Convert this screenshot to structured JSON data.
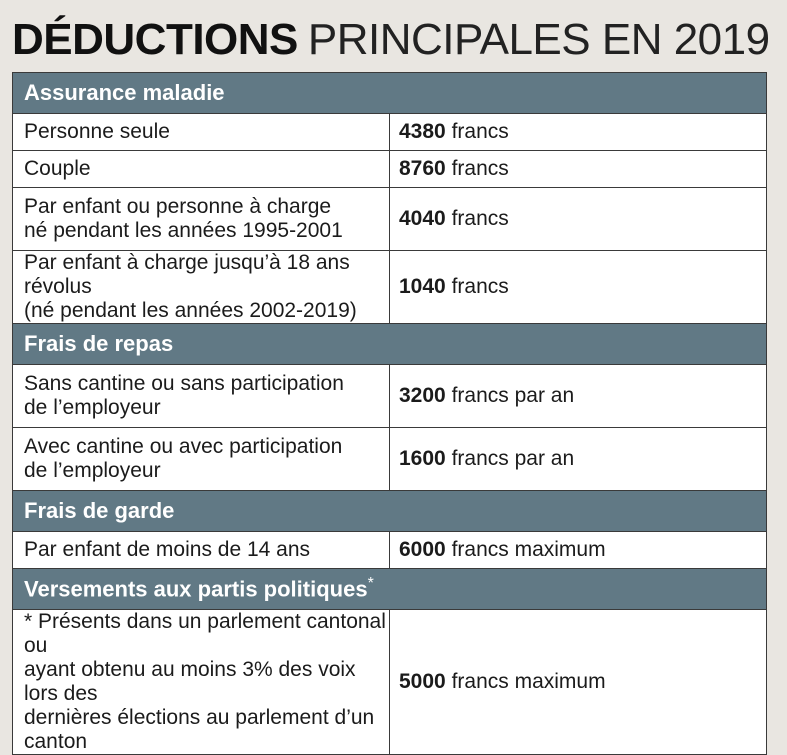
{
  "title": {
    "bold": "DÉDUCTIONS",
    "light": "PRINCIPALES EN 2019"
  },
  "sections": {
    "s0": {
      "heading": "Assurance maladie",
      "rows": [
        {
          "label1": "Personne seule",
          "num": "4380",
          "unit": "francs"
        },
        {
          "label1": "Couple",
          "num": "8760",
          "unit": "francs"
        },
        {
          "label1": "Par enfant ou personne à charge",
          "label2": "né pendant les années 1995-2001",
          "num": "4040",
          "unit": "francs"
        },
        {
          "label1": "Par enfant à charge jusqu’à 18 ans révolus",
          "label2": "(né pendant les années 2002-2019)",
          "num": "1040",
          "unit": "francs"
        }
      ]
    },
    "s1": {
      "heading": "Frais de repas",
      "rows": [
        {
          "label1": "Sans cantine ou sans participation",
          "label2": "de l’employeur",
          "num": "3200",
          "unit": "francs par an"
        },
        {
          "label1": "Avec cantine ou avec participation",
          "label2": "de l’employeur",
          "num": "1600",
          "unit": "francs par an"
        }
      ]
    },
    "s2": {
      "heading": "Frais de garde",
      "rows": [
        {
          "label1": "Par enfant de moins de 14 ans",
          "num": "6000",
          "unit": "francs maximum"
        }
      ]
    },
    "s3": {
      "heading": "Versements aux partis politiques",
      "heading_mark": "*",
      "rows": [
        {
          "label1": "* Présents dans un parlement cantonal ou",
          "label2": "ayant obtenu au moins 3% des voix lors des",
          "label3": "dernières élections au parlement d’un canton",
          "num": "5000",
          "unit": "francs maximum"
        }
      ]
    }
  }
}
